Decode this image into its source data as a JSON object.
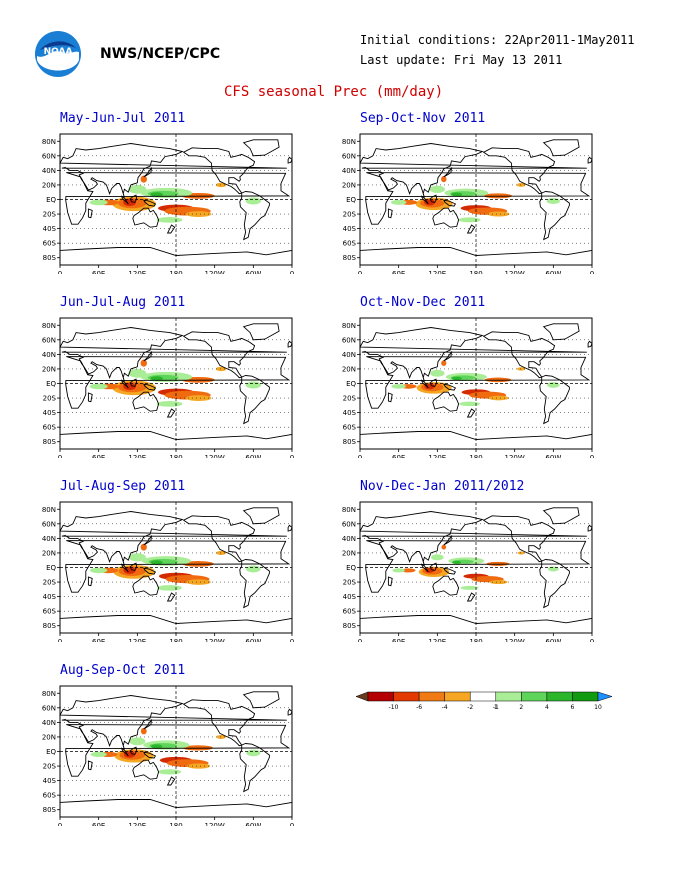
{
  "header": {
    "agency": "NWS/NCEP/CPC",
    "initial_conditions": "Initial conditions: 22Apr2011-1May2011",
    "last_update": "Last update: Fri May 13 2011",
    "title": "CFS seasonal Prec (mm/day)",
    "logo_text": "NOAA"
  },
  "axes": {
    "lat_labels": [
      "80N",
      "60N",
      "40N",
      "20N",
      "EQ",
      "20S",
      "40S",
      "60S",
      "80S"
    ],
    "lon_labels": [
      "0",
      "60E",
      "120E",
      "180",
      "120W",
      "60W",
      "0"
    ]
  },
  "colors": {
    "frame": "#000000",
    "coast": "#000000",
    "panel_title": "#0000cc",
    "main_title": "#d00000",
    "dry_deep": "#8b1a00",
    "dry_strong": "#d42a00",
    "dry_moderate": "#f06a10",
    "dry_light": "#f5a623",
    "wet_light": "#a9ee96",
    "wet_moderate": "#5fd45a",
    "wet_strong": "#2ab52a",
    "wet_deep": "#0f9a0f"
  },
  "panels": [
    {
      "title": "May-Jun-Jul 2011",
      "intensity": 1.0
    },
    {
      "title": "Sep-Oct-Nov 2011",
      "intensity": 0.85
    },
    {
      "title": "Jun-Jul-Aug 2011",
      "intensity": 1.0
    },
    {
      "title": "Oct-Nov-Dec 2011",
      "intensity": 0.8
    },
    {
      "title": "Jul-Aug-Sep 2011",
      "intensity": 0.95
    },
    {
      "title": "Nov-Dec-Jan 2011/2012",
      "intensity": 0.7
    },
    {
      "title": "Aug-Sep-Oct 2011",
      "intensity": 0.9
    }
  ],
  "legend": {
    "labels": [
      "-10",
      "-6",
      "-4",
      "-2",
      "-1",
      "1",
      "2",
      "4",
      "6",
      "10"
    ],
    "colors": [
      "#6b3a1e",
      "#b40000",
      "#e23a00",
      "#f07a14",
      "#f5a623",
      "#ffffff",
      "#a9ee96",
      "#5fd45a",
      "#2ab52a",
      "#0f9a0f",
      "#1e90ff"
    ]
  }
}
